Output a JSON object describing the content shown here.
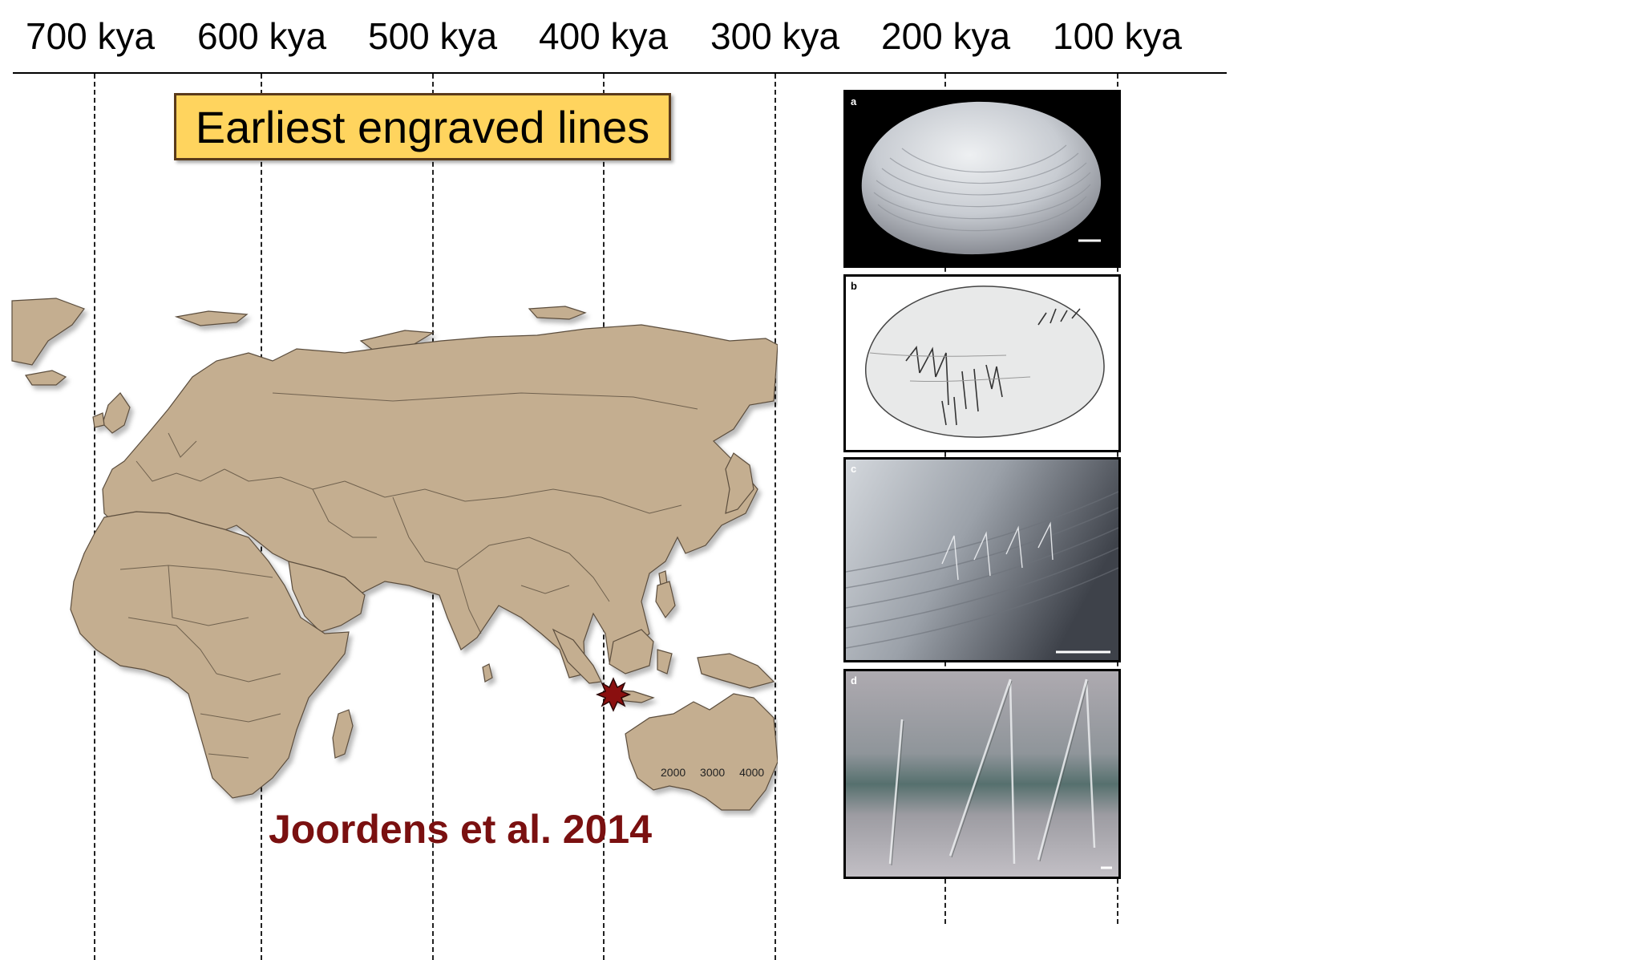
{
  "timeline": {
    "ticks": [
      "700 kya",
      "600 kya",
      "500 kya",
      "400 kya",
      "300 kya",
      "200 kya",
      "100 kya"
    ]
  },
  "title": "Earliest engraved lines",
  "map": {
    "land_color": "#c4ae90",
    "border_color": "#5b4e3e",
    "marker_color": "#8a0f0f",
    "scale_numbers": "2000 3000 4000"
  },
  "credit": "Joordens et al. 2014",
  "credit_color": "#7a1010",
  "panels": [
    {
      "letter": "a",
      "alt": "shell photo"
    },
    {
      "letter": "b",
      "alt": "engraving drawing"
    },
    {
      "letter": "c",
      "alt": "engraving close-up"
    },
    {
      "letter": "d",
      "alt": "engraving detail"
    }
  ]
}
